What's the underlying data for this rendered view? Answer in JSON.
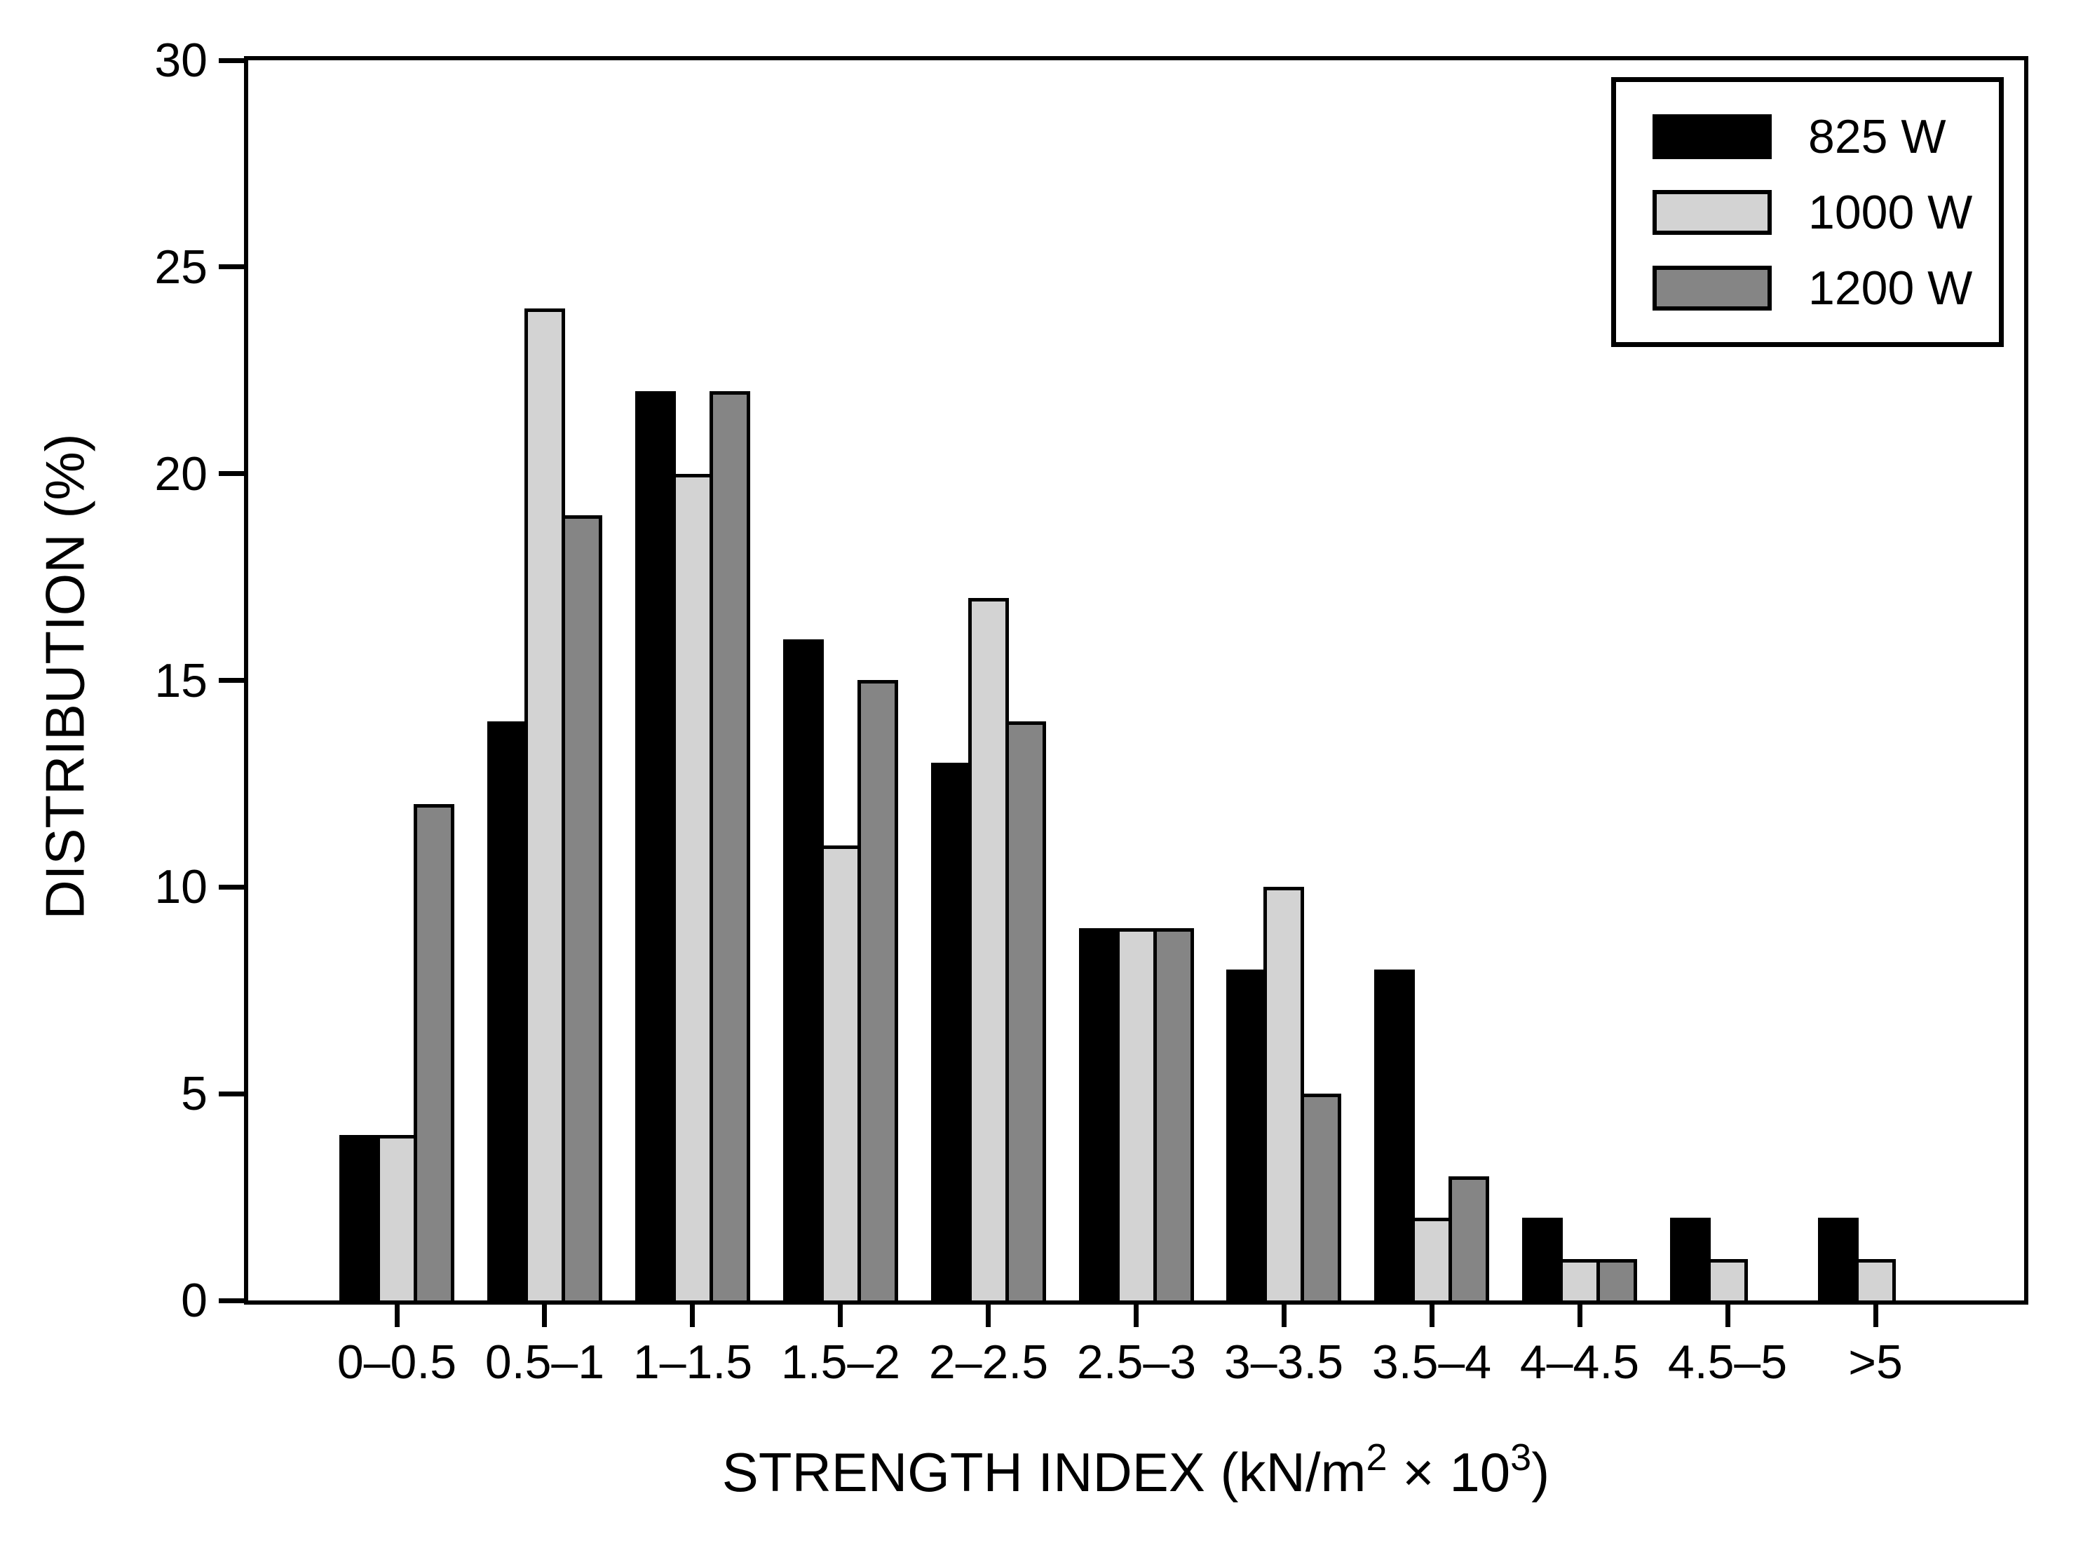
{
  "chart_data": {
    "type": "bar",
    "title": "",
    "ylabel": "DISTRIBUTION (%)",
    "xlabel_plain": "STRENGTH INDEX (kN/m2 × 103)",
    "xlabel_segments": [
      {
        "text": "STRENGTH INDEX (kN/m",
        "superscript": false
      },
      {
        "text": "2",
        "superscript": true
      },
      {
        "text": " × 10",
        "superscript": false
      },
      {
        "text": "3",
        "superscript": true
      },
      {
        "text": ")",
        "superscript": false
      }
    ],
    "categories": [
      "0–0.5",
      "0.5–1",
      "1–1.5",
      "1.5–2",
      "2–2.5",
      "2.5–3",
      "3–3.5",
      "3.5–4",
      "4–4.5",
      "4.5–5",
      ">5"
    ],
    "series": [
      {
        "name": "825 W",
        "color": "#000000",
        "values": [
          4,
          14,
          22,
          16,
          13,
          9,
          8,
          8,
          2,
          2,
          2
        ]
      },
      {
        "name": "1000 W",
        "color": "#d3d3d3",
        "values": [
          4,
          24,
          20,
          11,
          17,
          9,
          10,
          2,
          1,
          1,
          1
        ]
      },
      {
        "name": "1200 W",
        "color": "#858585",
        "values": [
          12,
          19,
          22,
          15,
          14,
          9,
          5,
          3,
          1,
          0,
          0
        ]
      }
    ],
    "ylim": [
      0,
      30
    ],
    "yticks": [
      0,
      5,
      10,
      15,
      20,
      25,
      30
    ],
    "grid": false,
    "legend_position": "top-right",
    "bar_outline_color": "#000000",
    "axis_color": "#000000",
    "background_color": "#ffffff"
  }
}
